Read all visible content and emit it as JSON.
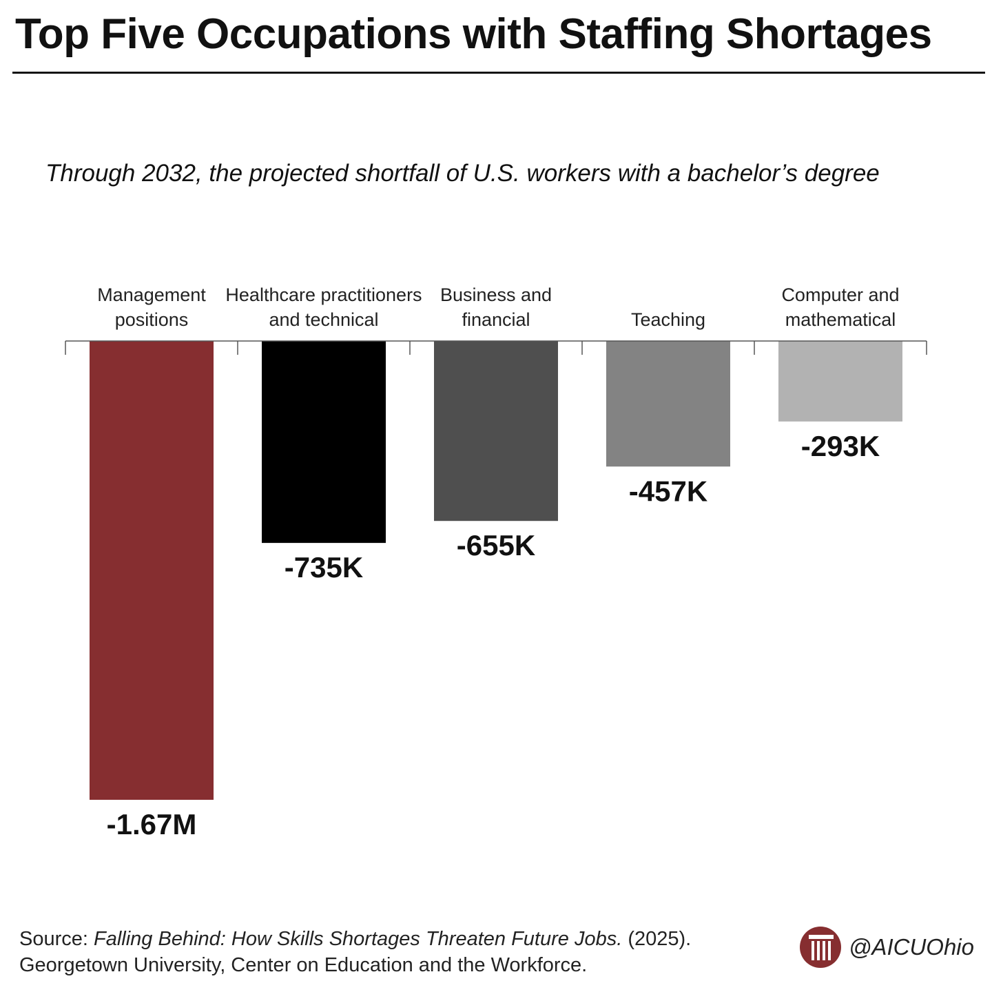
{
  "header": {
    "title": "Top Five Occupations with Staffing Shortages",
    "subtitle": "Through 2032, the projected shortfall of U.S. workers with a bachelor’s degree"
  },
  "chart_data": {
    "type": "bar",
    "title": "Top Five Occupations with Staffing Shortages",
    "subtitle": "Through 2032, the projected shortfall of U.S. workers with a bachelor’s degree",
    "categories": [
      [
        "Management",
        "positions"
      ],
      [
        "Healthcare practitioners",
        "and technical"
      ],
      [
        "Business and",
        "financial"
      ],
      [
        "Teaching"
      ],
      [
        "Computer and",
        "mathematical"
      ]
    ],
    "values": [
      -1670000,
      -735000,
      -655000,
      -457000,
      -293000
    ],
    "value_labels": [
      "-1.67M",
      "-735K",
      "-655K",
      "-457K",
      "-293K"
    ],
    "colors": [
      "#862e30",
      "#000000",
      "#4f4f4f",
      "#838383",
      "#b2b2b2"
    ],
    "axis_color": "#555555",
    "xlabel": "",
    "ylabel": "",
    "ylim": [
      -1670000,
      0
    ]
  },
  "footer": {
    "source_prefix": "Source: ",
    "source_title": "Falling Behind: How Skills Shortages Threaten Future Jobs.",
    "source_year": " (2025).",
    "source_line2": "Georgetown University, Center on Education and the Workforce.",
    "brand_handle": "@AICUOhio",
    "brand_color": "#862e30"
  }
}
